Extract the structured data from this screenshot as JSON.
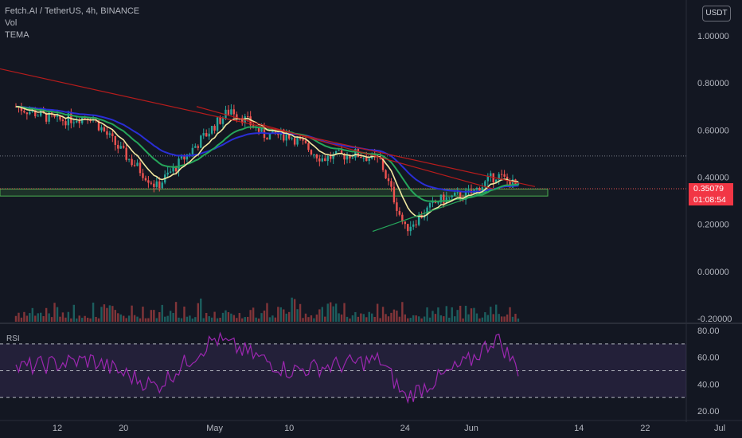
{
  "header": {
    "symbol_line": "Fetch.AI / TetherUS, 4h, BINANCE",
    "indicators": [
      "Vol",
      "TEMA"
    ],
    "currency_button": "USDT"
  },
  "price_badge": {
    "price": "0.35079",
    "countdown": "01:08:54"
  },
  "rsi_label": "RSI",
  "colors": {
    "background": "#131722",
    "up": "#26a69a",
    "down": "#ef5350",
    "ma_blue": "#2a2ed6",
    "ma_green": "#26a65b",
    "ma_yellow": "#f2e8a0",
    "trendline": "#b71c1c",
    "support_zone": "#4caf50",
    "rsi_line": "#9c27b0"
  },
  "chart_data": [
    {
      "type": "candlestick",
      "title": "Fetch.AI / TetherUS, 4h, BINANCE",
      "y_axis": {
        "ticks": [
          "1.00000",
          "0.80000",
          "0.60000",
          "0.40000",
          "0.20000",
          "0.00000",
          "-0.20000"
        ],
        "range": [
          -0.2,
          1.0
        ]
      },
      "x_axis": {
        "ticks": [
          "12",
          "20",
          "May",
          "10",
          "24",
          "Jun",
          "14",
          "22",
          "Jul"
        ]
      },
      "last_price": 0.35079,
      "horizontal_level": 0.49,
      "support_zone": [
        0.32,
        0.35
      ],
      "moving_averages": [
        "blue",
        "green",
        "yellow"
      ],
      "annotations": [
        "descending trendline",
        "rising trendline",
        "support zone"
      ],
      "series": [
        {
          "name": "close",
          "x": [
            "Apr 7",
            "Apr 12",
            "Apr 16",
            "Apr 20",
            "Apr 24",
            "Apr 27",
            "May 1",
            "May 3",
            "May 7",
            "May 10",
            "May 14",
            "May 18",
            "May 21",
            "May 24",
            "May 28",
            "Jun 1",
            "Jun 4",
            "Jun 7"
          ],
          "values": [
            0.7,
            0.64,
            0.66,
            0.5,
            0.36,
            0.47,
            0.62,
            0.69,
            0.58,
            0.58,
            0.48,
            0.5,
            0.47,
            0.18,
            0.3,
            0.33,
            0.41,
            0.35
          ]
        }
      ]
    },
    {
      "type": "bar",
      "title": "Vol",
      "note": "volume histogram at bottom of price pane"
    },
    {
      "type": "line",
      "title": "RSI",
      "y_axis": {
        "ticks": [
          "80.00",
          "60.00",
          "40.00",
          "20.00"
        ],
        "range": [
          20,
          80
        ]
      },
      "bands": [
        30,
        50,
        70
      ],
      "series": [
        {
          "name": "RSI",
          "x": [
            "Apr 7",
            "Apr 16",
            "Apr 24",
            "May 1",
            "May 10",
            "May 21",
            "May 24",
            "Jun 1",
            "Jun 4",
            "Jun 7"
          ],
          "values": [
            52,
            58,
            38,
            74,
            50,
            58,
            30,
            58,
            75,
            48
          ]
        }
      ]
    }
  ]
}
